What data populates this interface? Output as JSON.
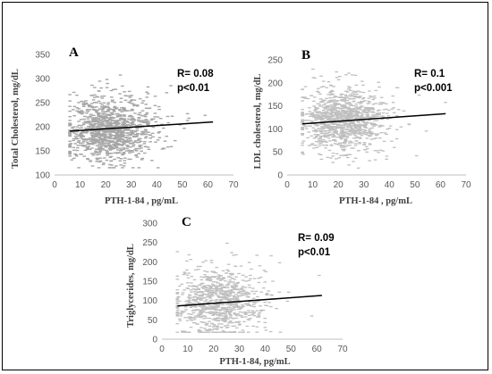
{
  "chart_data": [
    {
      "id": "A",
      "type": "scatter",
      "panel_label": "A",
      "xlabel": "PTH-1-84 , pg/mL",
      "ylabel": "Total Cholesterol, mg/dL",
      "xlim": [
        0,
        70
      ],
      "ylim": [
        100,
        350
      ],
      "xticks": [
        0,
        10,
        20,
        30,
        40,
        50,
        60,
        70
      ],
      "yticks": [
        100,
        150,
        200,
        250,
        300,
        350
      ],
      "annotation": [
        "R= 0.08",
        "p<0.01"
      ],
      "trendline": {
        "x": [
          6,
          62
        ],
        "y": [
          191,
          210
        ]
      },
      "scatter": {
        "n": 1100,
        "x_center": 22,
        "x_spread": 8,
        "y_center": 195,
        "y_spread": 32,
        "seed": 11
      },
      "grid": false,
      "legend": "none",
      "point_color": "#a6a6a6"
    },
    {
      "id": "B",
      "type": "scatter",
      "panel_label": "B",
      "xlabel": "PTH-1-84 , pg/mL",
      "ylabel": "LDL cholesterol, mg/dL",
      "xlim": [
        0,
        70
      ],
      "ylim": [
        0,
        250
      ],
      "xticks": [
        0,
        10,
        20,
        30,
        40,
        50,
        60,
        70
      ],
      "yticks": [
        0,
        50,
        100,
        150,
        200,
        250
      ],
      "annotation": [
        "R= 0.1",
        "p<0.001"
      ],
      "trendline": {
        "x": [
          6,
          62
        ],
        "y": [
          111,
          133
        ]
      },
      "scatter": {
        "n": 1100,
        "x_center": 22,
        "x_spread": 8,
        "y_center": 118,
        "y_spread": 33,
        "seed": 29
      },
      "grid": false,
      "legend": "none",
      "point_color": "#bfbfbf"
    },
    {
      "id": "C",
      "type": "scatter",
      "panel_label": "C",
      "xlabel": "PTH-1-84, pg/mL",
      "ylabel": "Triglycerides, mg/dL",
      "xlim": [
        0,
        70
      ],
      "ylim": [
        0,
        300
      ],
      "xticks": [
        0,
        10,
        20,
        30,
        40,
        50,
        60,
        70
      ],
      "yticks": [
        0,
        50,
        100,
        150,
        200,
        250,
        300
      ],
      "annotation": [
        "R= 0.09",
        "p<0.01"
      ],
      "trendline": {
        "x": [
          6,
          62
        ],
        "y": [
          86,
          113
        ]
      },
      "scatter": {
        "n": 900,
        "x_center": 22,
        "x_spread": 8,
        "y_center": 98,
        "y_spread": 42,
        "seed": 47
      },
      "grid": false,
      "legend": "none",
      "point_color": "#c9c9c9"
    }
  ]
}
